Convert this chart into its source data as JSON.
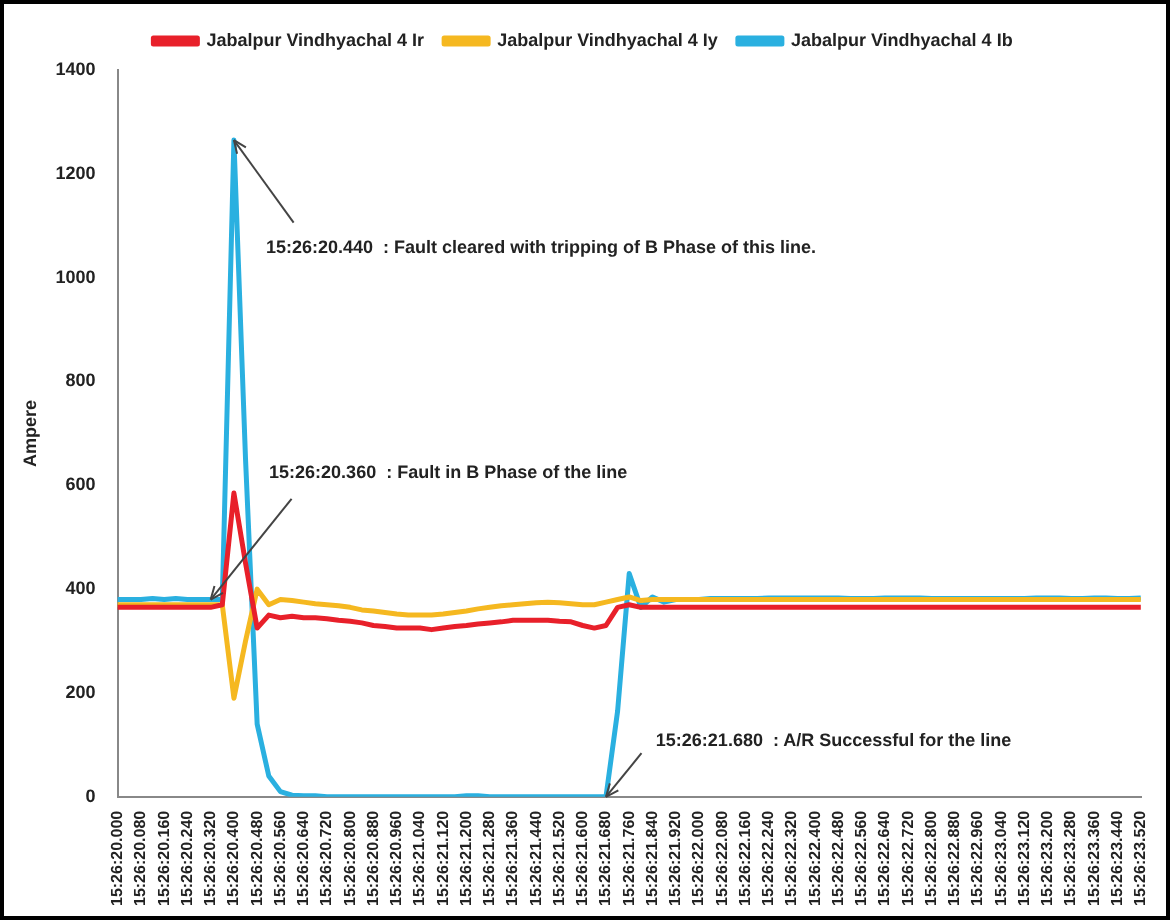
{
  "chart_data": {
    "type": "line",
    "ylabel": "Ampere",
    "categories": [
      "15:26:20.000",
      null,
      "15:26:20.080",
      null,
      "15:26:20.160",
      null,
      "15:26:20.240",
      null,
      "15:26:20.320",
      null,
      "15:26:20.400",
      null,
      "15:26:20.480",
      null,
      "15:26:20.560",
      null,
      "15:26:20.640",
      null,
      "15:26:20.720",
      null,
      "15:26:20.800",
      null,
      "15:26:20.880",
      null,
      "15:26:20.960",
      null,
      "15:26:21.040",
      null,
      "15:26:21.120",
      null,
      "15:26:21.200",
      null,
      "15:26:21.280",
      null,
      "15:26:21.360",
      null,
      "15:26:21.440",
      null,
      "15:26:21.520",
      null,
      "15:26:21.600",
      null,
      "15:26:21.680",
      null,
      "15:26:21.760",
      null,
      "15:26:21.840",
      null,
      "15:26:21.920",
      null,
      "15:26:22.000",
      null,
      "15:26:22.080",
      null,
      "15:26:22.160",
      null,
      "15:26:22.240",
      null,
      "15:26:22.320",
      null,
      "15:26:22.400",
      null,
      "15:26:22.480",
      null,
      "15:26:22.560",
      null,
      "15:26:22.640",
      null,
      "15:26:22.720",
      null,
      "15:26:22.800",
      null,
      "15:26:22.880",
      null,
      "15:26:22.960",
      null,
      "15:26:23.040",
      null,
      "15:26:23.120",
      null,
      "15:26:23.200",
      null,
      "15:26:23.280",
      null,
      "15:26:23.360",
      null,
      "15:26:23.440",
      null,
      "15:26:23.520"
    ],
    "series": [
      {
        "name": "Jabalpur Vindhyachal 4 Ir",
        "color": "#e8202a",
        "values": [
          365,
          365,
          365,
          365,
          365,
          365,
          365,
          365,
          365,
          370,
          585,
          450,
          325,
          350,
          345,
          348,
          345,
          345,
          343,
          340,
          338,
          335,
          330,
          328,
          325,
          325,
          325,
          322,
          325,
          328,
          330,
          333,
          335,
          337,
          340,
          340,
          340,
          340,
          338,
          337,
          330,
          325,
          330,
          365,
          370,
          365,
          365,
          365,
          365,
          365,
          365,
          365,
          365,
          365,
          365,
          365,
          365,
          365,
          365,
          365,
          365,
          365,
          365,
          365,
          365,
          365,
          365,
          365,
          365,
          365,
          365,
          365,
          365,
          365,
          365,
          365,
          365,
          365,
          365,
          365,
          365,
          365,
          365,
          365,
          365,
          365,
          365,
          365,
          365
        ]
      },
      {
        "name": "Jabalpur Vindhyachal 4 Iy",
        "color": "#f5b820",
        "values": [
          370,
          370,
          370,
          370,
          370,
          370,
          370,
          370,
          370,
          370,
          190,
          300,
          400,
          370,
          380,
          378,
          375,
          372,
          370,
          368,
          365,
          360,
          358,
          355,
          352,
          350,
          350,
          350,
          352,
          355,
          358,
          362,
          365,
          368,
          370,
          372,
          374,
          375,
          374,
          372,
          370,
          370,
          375,
          380,
          385,
          378,
          380,
          380,
          380,
          380,
          380,
          380,
          380,
          380,
          380,
          380,
          380,
          380,
          380,
          380,
          380,
          380,
          380,
          380,
          380,
          380,
          380,
          380,
          380,
          380,
          380,
          380,
          380,
          380,
          380,
          380,
          380,
          380,
          380,
          380,
          380,
          380,
          380,
          380,
          380,
          380,
          380,
          380,
          380
        ]
      },
      {
        "name": "Jabalpur Vindhyachal 4 Ib",
        "color": "#2ab0e0",
        "values": [
          380,
          380,
          380,
          382,
          380,
          382,
          380,
          380,
          380,
          380,
          1265,
          650,
          140,
          40,
          10,
          3,
          2,
          2,
          0,
          0,
          0,
          0,
          0,
          0,
          0,
          0,
          0,
          0,
          0,
          0,
          2,
          2,
          0,
          0,
          0,
          0,
          0,
          0,
          0,
          0,
          0,
          0,
          0,
          165,
          430,
          365,
          385,
          375,
          380,
          380,
          380,
          382,
          382,
          382,
          382,
          382,
          383,
          383,
          383,
          383,
          383,
          383,
          383,
          382,
          382,
          382,
          383,
          383,
          383,
          383,
          382,
          382,
          382,
          382,
          382,
          382,
          382,
          382,
          382,
          383,
          383,
          383,
          382,
          382,
          383,
          383,
          382,
          382,
          383
        ]
      }
    ],
    "ylim": [
      0,
      1400
    ],
    "yticks": [
      0,
      200,
      400,
      600,
      800,
      1000,
      1200,
      1400
    ],
    "grid": false,
    "legend": "top",
    "marker": "none",
    "line_style": "solid",
    "annotations": [
      {
        "text": "15:26:20.440  : Fault cleared with tripping of B Phase of this line.",
        "x": "15:26:20.400",
        "y": 1265
      },
      {
        "text": "15:26:20.360  : Fault in B Phase of the line",
        "x": "15:26:20.320",
        "y": 380
      },
      {
        "text": "15:26:21.680  : A/R Successful for the line",
        "x": "15:26:21.680",
        "y": 0
      }
    ]
  }
}
